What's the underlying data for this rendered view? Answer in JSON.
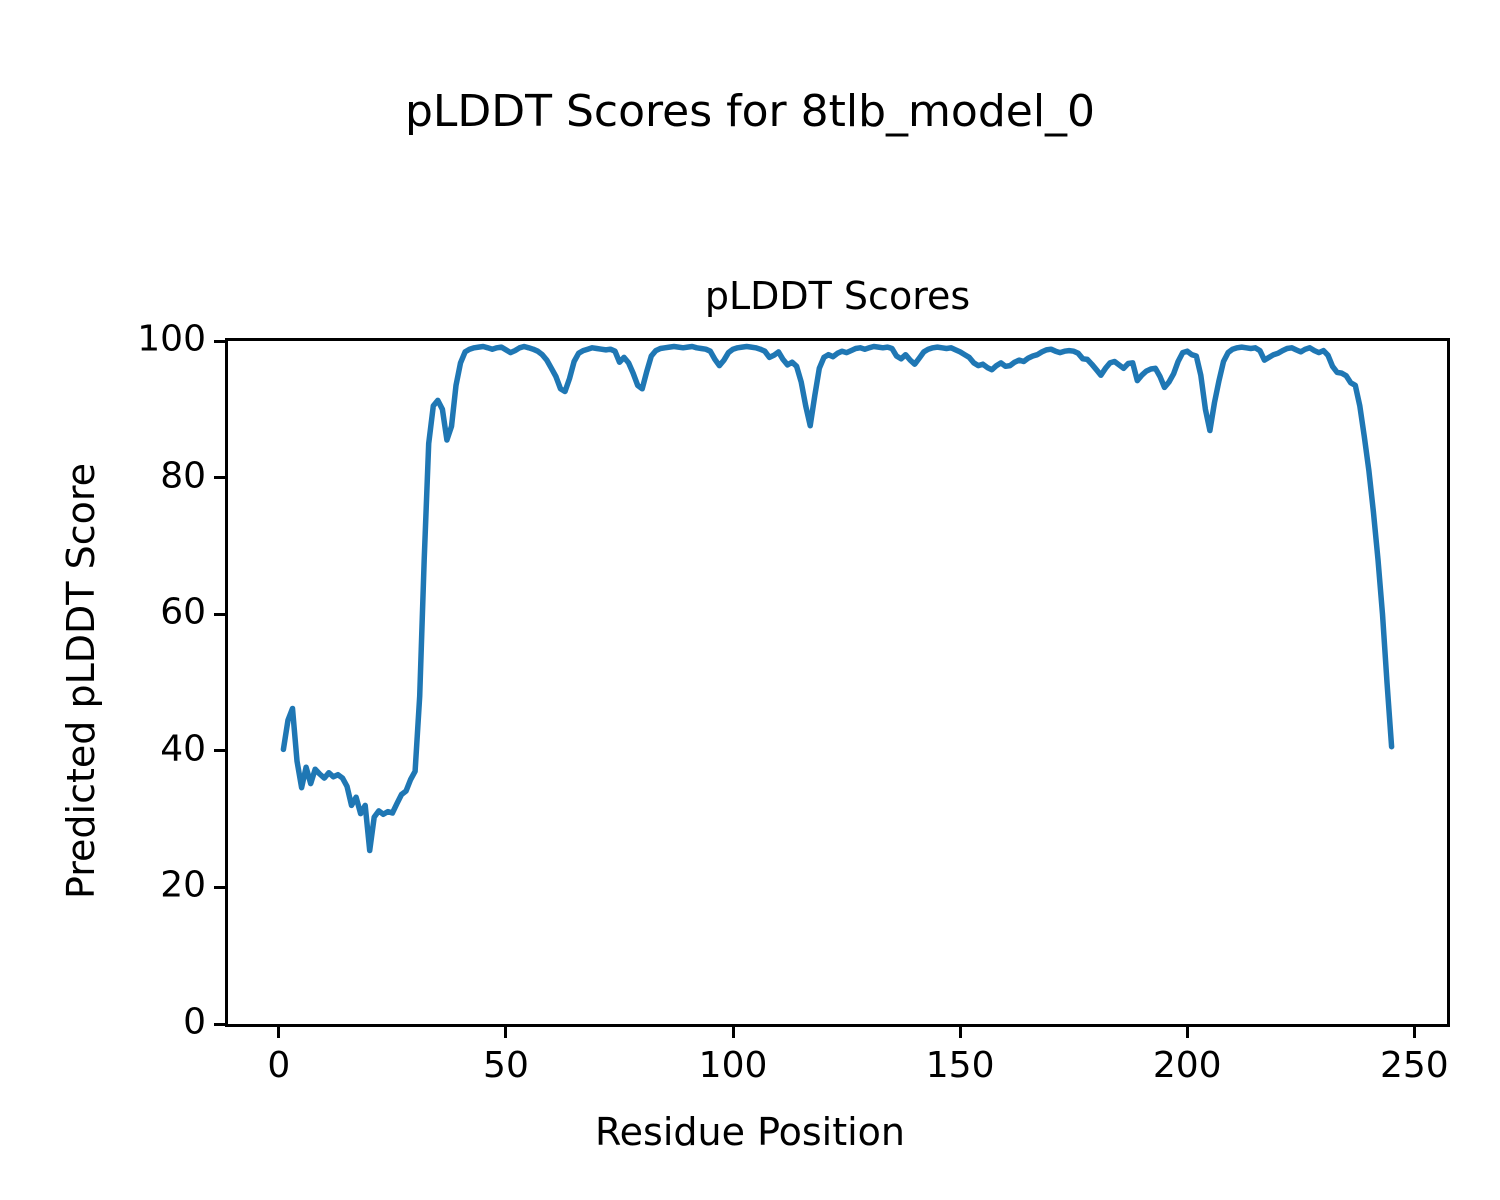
{
  "figure": {
    "title": "pLDDT Scores for 8tlb_model_0"
  },
  "chart_data": {
    "type": "line",
    "title": "pLDDT Scores",
    "xlabel": "Residue Position",
    "ylabel": "Predicted pLDDT Score",
    "xlim": [
      -11.2,
      257.2
    ],
    "ylim": [
      0,
      100
    ],
    "xticks": [
      0,
      50,
      100,
      150,
      200,
      250
    ],
    "yticks": [
      0,
      20,
      40,
      60,
      80,
      100
    ],
    "grid": false,
    "legend": null,
    "x_start": 1,
    "line_color": "#1f77b4",
    "line_width": 5.5,
    "series": [
      {
        "name": "pLDDT",
        "color": "#1f77b4",
        "values": [
          40.2,
          44.5,
          46.2,
          38.5,
          34.6,
          37.6,
          35.2,
          37.3,
          36.6,
          36.0,
          36.8,
          36.2,
          36.5,
          36.0,
          34.8,
          32.0,
          33.2,
          30.8,
          32.0,
          25.4,
          30.3,
          31.2,
          30.7,
          31.1,
          30.9,
          32.3,
          33.6,
          34.1,
          35.8,
          37.0,
          48.0,
          68.0,
          85.0,
          90.5,
          91.3,
          90.0,
          85.5,
          87.5,
          93.5,
          96.8,
          98.4,
          98.8,
          99.0,
          99.1,
          99.2,
          99.0,
          98.8,
          99.0,
          99.1,
          98.7,
          98.3,
          98.6,
          99.0,
          99.2,
          99.0,
          98.8,
          98.5,
          98.0,
          97.2,
          96.0,
          94.8,
          93.0,
          92.6,
          94.5,
          97.0,
          98.2,
          98.6,
          98.8,
          99.0,
          98.9,
          98.8,
          98.7,
          98.8,
          98.5,
          96.9,
          97.6,
          96.8,
          95.3,
          93.5,
          93.0,
          95.5,
          97.8,
          98.6,
          98.9,
          99.0,
          99.1,
          99.2,
          99.1,
          99.0,
          99.1,
          99.2,
          99.0,
          98.9,
          98.8,
          98.5,
          97.3,
          96.4,
          97.2,
          98.3,
          98.8,
          99.0,
          99.1,
          99.2,
          99.1,
          99.0,
          98.8,
          98.5,
          97.6,
          97.9,
          98.4,
          97.3,
          96.5,
          96.9,
          96.3,
          94.0,
          90.5,
          87.6,
          92.0,
          96.0,
          97.6,
          98.0,
          97.7,
          98.2,
          98.5,
          98.3,
          98.6,
          98.9,
          99.0,
          98.8,
          99.0,
          99.2,
          99.1,
          99.0,
          99.1,
          98.9,
          97.8,
          97.4,
          98.0,
          97.2,
          96.6,
          97.5,
          98.4,
          98.8,
          99.0,
          99.1,
          99.0,
          98.9,
          99.0,
          98.7,
          98.4,
          98.0,
          97.6,
          96.8,
          96.4,
          96.6,
          96.1,
          95.8,
          96.4,
          96.8,
          96.3,
          96.4,
          96.9,
          97.2,
          97.0,
          97.5,
          97.8,
          98.0,
          98.4,
          98.7,
          98.8,
          98.5,
          98.3,
          98.5,
          98.6,
          98.5,
          98.2,
          97.4,
          97.3,
          96.6,
          95.8,
          95.0,
          96.0,
          96.8,
          97.0,
          96.5,
          96.0,
          96.7,
          96.8,
          94.2,
          95.0,
          95.6,
          95.9,
          96.0,
          94.8,
          93.2,
          94.0,
          95.2,
          97.0,
          98.3,
          98.5,
          98.0,
          97.8,
          95.0,
          90.0,
          86.9,
          91.0,
          94.2,
          97.0,
          98.3,
          98.8,
          99.0,
          99.1,
          99.0,
          98.9,
          99.0,
          98.6,
          97.2,
          97.6,
          98.0,
          98.2,
          98.6,
          98.9,
          99.0,
          98.7,
          98.4,
          98.8,
          99.0,
          98.6,
          98.3,
          98.6,
          97.9,
          96.3,
          95.4,
          95.3,
          94.9,
          93.9,
          93.5,
          90.5,
          86.0,
          81.0,
          75.0,
          68.0,
          60.0,
          50.0,
          40.6
        ]
      }
    ]
  }
}
